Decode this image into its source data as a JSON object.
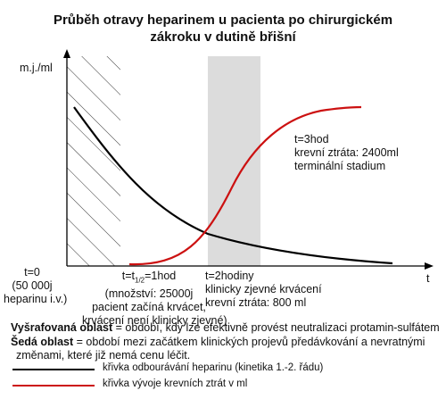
{
  "title_line1": "Průběh otravy heparinem u pacienta po chirurgickém",
  "title_line2": "zákroku v dutině břišní",
  "y_axis_label": "m.j./ml",
  "x_axis_label": "t",
  "annotations": {
    "t0": {
      "line1": "t=0",
      "line2": "(50 000j",
      "line3": "heparinu i.v.)"
    },
    "t1": {
      "line1": "t=t",
      "sub": "1/2",
      "suffix": "=1hod",
      "line2": "(množství: 25000j",
      "line3": "pacient začíná krvácet,",
      "line4": "krvácení není klinicky zjevné)"
    },
    "t2": {
      "line1": "t=2hodiny",
      "line2": "klinicky zjevné krvácení",
      "line3": "krevní ztráta: 800 ml"
    },
    "t3": {
      "line1": "t=3hod",
      "line2": "krevní ztráta: 2400ml",
      "line3": "terminální stadium"
    }
  },
  "notes": {
    "hatched_bold": "Vyšrafovaná oblast",
    "hatched_text": " = období, kdy lze efektivně provést neutralizaci protamin-sulfátem",
    "grey_bold": "Šedá oblast",
    "grey_text": " = období mezi začátkem klinických projevů předávkování a nevratnými",
    "grey_text2": "změnami, které již nemá cenu léčit."
  },
  "legend": [
    {
      "label": "křivka odbourávání heparinu (kinetika 1.-2. řádu)",
      "color": "#000000"
    },
    {
      "label": "křivka vývoje krevních ztrát v ml",
      "color": "#cc1111"
    }
  ],
  "colors": {
    "grey_zone": "#dcdcdc",
    "heparin_curve": "#000000",
    "blood_loss_curve": "#cc1111"
  }
}
